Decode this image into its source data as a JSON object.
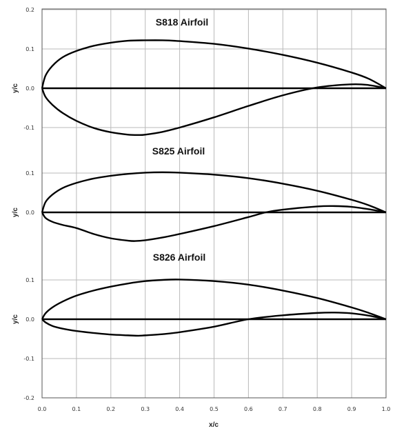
{
  "chart_data": [
    {
      "type": "line",
      "title": "S818 Airfoil",
      "xlabel": "x/c",
      "ylabel": "y/c",
      "xlim": [
        0,
        1
      ],
      "ylim": [
        -0.2,
        0.2
      ],
      "y_ticks": [
        "0.2",
        "0.1",
        "0.0",
        "-0.1"
      ],
      "grid": true,
      "series": [
        {
          "x": [
            0,
            0.01,
            0.03,
            0.06,
            0.1,
            0.15,
            0.2,
            0.25,
            0.3,
            0.35,
            0.4,
            0.5,
            0.6,
            0.7,
            0.8,
            0.9,
            0.95,
            1.0
          ],
          "y": [
            0,
            0.032,
            0.057,
            0.079,
            0.095,
            0.108,
            0.116,
            0.121,
            0.122,
            0.122,
            0.12,
            0.113,
            0.101,
            0.085,
            0.065,
            0.04,
            0.024,
            0
          ]
        },
        {
          "x": [
            0,
            0.01,
            0.03,
            0.06,
            0.1,
            0.15,
            0.2,
            0.25,
            0.28,
            0.3,
            0.35,
            0.4,
            0.5,
            0.6,
            0.7,
            0.8,
            0.9,
            0.95,
            1.0
          ],
          "y": [
            0,
            -0.022,
            -0.042,
            -0.063,
            -0.083,
            -0.101,
            -0.112,
            -0.118,
            -0.119,
            -0.118,
            -0.111,
            -0.1,
            -0.074,
            -0.045,
            -0.018,
            0.002,
            0.01,
            0.008,
            0
          ]
        },
        {
          "x": [
            0,
            1
          ],
          "y": [
            0,
            0
          ]
        }
      ]
    },
    {
      "type": "line",
      "title": "S825 Airfoil",
      "xlabel": "x/c",
      "ylabel": "y/c",
      "xlim": [
        0,
        1
      ],
      "ylim": [
        -0.1,
        0.1
      ],
      "y_ticks": [
        "0.1",
        "0.0"
      ],
      "grid": true,
      "series": [
        {
          "x": [
            0,
            0.01,
            0.03,
            0.06,
            0.1,
            0.15,
            0.2,
            0.25,
            0.3,
            0.35,
            0.4,
            0.5,
            0.6,
            0.7,
            0.8,
            0.9,
            0.95,
            1.0
          ],
          "y": [
            0,
            0.026,
            0.045,
            0.062,
            0.075,
            0.086,
            0.093,
            0.098,
            0.101,
            0.102,
            0.101,
            0.096,
            0.087,
            0.073,
            0.055,
            0.032,
            0.018,
            0
          ]
        },
        {
          "x": [
            0,
            0.01,
            0.03,
            0.06,
            0.1,
            0.15,
            0.2,
            0.25,
            0.27,
            0.3,
            0.35,
            0.4,
            0.5,
            0.6,
            0.65,
            0.7,
            0.8,
            0.85,
            0.9,
            0.95,
            1.0
          ],
          "y": [
            0,
            -0.014,
            -0.024,
            -0.032,
            -0.04,
            -0.055,
            -0.066,
            -0.072,
            -0.073,
            -0.071,
            -0.064,
            -0.055,
            -0.035,
            -0.012,
            0,
            0.007,
            0.015,
            0.016,
            0.014,
            0.008,
            0
          ]
        },
        {
          "x": [
            0,
            1
          ],
          "y": [
            0,
            0
          ]
        }
      ]
    },
    {
      "type": "line",
      "title": "S826 Airfoil",
      "xlabel": "x/c",
      "ylabel": "y/c",
      "xlim": [
        0,
        1
      ],
      "ylim": [
        -0.2,
        0.1
      ],
      "y_ticks": [
        "0.1",
        "0.0",
        "-0.1",
        "-0.2"
      ],
      "x_ticks": [
        "0.0",
        "0.1",
        "0.2",
        "0.3",
        "0.4",
        "0.5",
        "0.6",
        "0.7",
        "0.8",
        "0.9",
        "1.0"
      ],
      "grid": true,
      "series": [
        {
          "x": [
            0,
            0.01,
            0.03,
            0.06,
            0.1,
            0.15,
            0.2,
            0.25,
            0.3,
            0.35,
            0.4,
            0.5,
            0.6,
            0.7,
            0.8,
            0.9,
            0.95,
            1.0
          ],
          "y": [
            0,
            0.015,
            0.03,
            0.045,
            0.06,
            0.073,
            0.083,
            0.091,
            0.097,
            0.1,
            0.101,
            0.097,
            0.088,
            0.073,
            0.054,
            0.03,
            0.016,
            0
          ]
        },
        {
          "x": [
            0,
            0.01,
            0.03,
            0.06,
            0.1,
            0.15,
            0.2,
            0.25,
            0.28,
            0.3,
            0.35,
            0.4,
            0.5,
            0.6,
            0.7,
            0.8,
            0.85,
            0.9,
            0.95,
            1.0
          ],
          "y": [
            0,
            -0.008,
            -0.017,
            -0.024,
            -0.03,
            -0.035,
            -0.039,
            -0.041,
            -0.042,
            -0.041,
            -0.038,
            -0.033,
            -0.019,
            0,
            0.01,
            0.016,
            0.017,
            0.015,
            0.009,
            0
          ]
        },
        {
          "x": [
            0,
            1
          ],
          "y": [
            0,
            0
          ]
        }
      ]
    }
  ]
}
